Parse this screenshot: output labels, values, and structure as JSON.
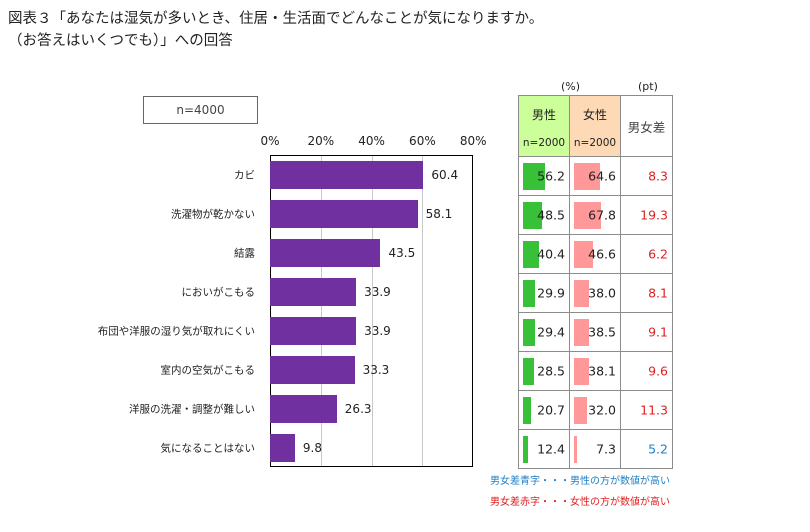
{
  "title": "図表３「あなたは湿気が多いとき、住居・生活面でどんなことが気になりますか。\n（お答えはいくつでも）」への回答",
  "sample": "n=4000",
  "colors": {
    "bar": "#7030a0",
    "male": "#38c038",
    "female": "#ff9999",
    "male_header": "#ccff99",
    "female_header": "#fdd9b5",
    "diff_red": "#e02020",
    "diff_blue": "#2080c8"
  },
  "chart_data": {
    "type": "bar",
    "orientation": "horizontal",
    "categories": [
      "カビ",
      "洗濯物が乾かない",
      "結露",
      "においがこもる",
      "布団や洋服の湿り気が取れにくい",
      "室内の空気がこもる",
      "洋服の洗濯・調整が難しい",
      "気になることはない"
    ],
    "values": [
      60.4,
      58.1,
      43.5,
      33.9,
      33.9,
      33.3,
      26.3,
      9.8
    ],
    "xticks": [
      "0%",
      "20%",
      "40%",
      "60%",
      "80%"
    ],
    "xlim": [
      0,
      80
    ],
    "grid": true
  },
  "table": {
    "unit_percent": "(%)",
    "unit_pt": "(pt)",
    "male_header": "男性",
    "male_n": "n=2000",
    "female_header": "女性",
    "female_n": "n=2000",
    "diff_header": "男女差",
    "male": [
      56.2,
      48.5,
      40.4,
      29.9,
      29.4,
      28.5,
      20.7,
      12.4
    ],
    "female": [
      64.6,
      67.8,
      46.6,
      38.0,
      38.5,
      38.1,
      32.0,
      7.3
    ],
    "male_text": [
      "56.2",
      "48.5",
      "40.4",
      "29.9",
      "29.4",
      "28.5",
      "20.7",
      "12.4"
    ],
    "female_text": [
      "64.6",
      "67.8",
      "46.6",
      "38.0",
      "38.5",
      "38.1",
      "32.0",
      "7.3"
    ],
    "diff_text": [
      "8.3",
      "19.3",
      "6.2",
      "8.1",
      "9.1",
      "9.6",
      "11.3",
      "5.2"
    ],
    "diff_color": [
      "red",
      "red",
      "red",
      "red",
      "red",
      "red",
      "red",
      "blue"
    ]
  },
  "notes": {
    "blue": "男女差青字・・・男性の方が数値が高い",
    "red": "男女差赤字・・・女性の方が数値が高い"
  }
}
